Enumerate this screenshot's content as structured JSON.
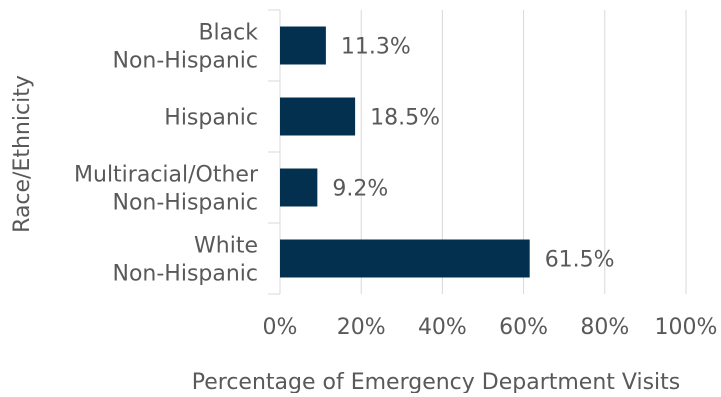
{
  "chart_data": {
    "type": "bar",
    "orientation": "horizontal",
    "categories": [
      [
        "Black",
        "Non-Hispanic"
      ],
      [
        "Hispanic"
      ],
      [
        "Multiracial/Other",
        "Non-Hispanic"
      ],
      [
        "White",
        "Non-Hispanic"
      ]
    ],
    "values": [
      11.3,
      18.5,
      9.2,
      61.5
    ],
    "data_labels": [
      "11.3%",
      "18.5%",
      "9.2%",
      "61.5%"
    ],
    "xlabel": "Percentage of Emergency Department Visits",
    "ylabel": "Race/Ethnicity",
    "xlim": [
      0,
      100
    ],
    "x_ticks": [
      0,
      20,
      40,
      60,
      80,
      100
    ],
    "x_tick_labels": [
      "0%",
      "20%",
      "40%",
      "60%",
      "80%",
      "100%"
    ],
    "grid": "vertical",
    "colors": {
      "bar": "#03304f",
      "grid": "#d9d9d9",
      "text": "#595959"
    }
  }
}
